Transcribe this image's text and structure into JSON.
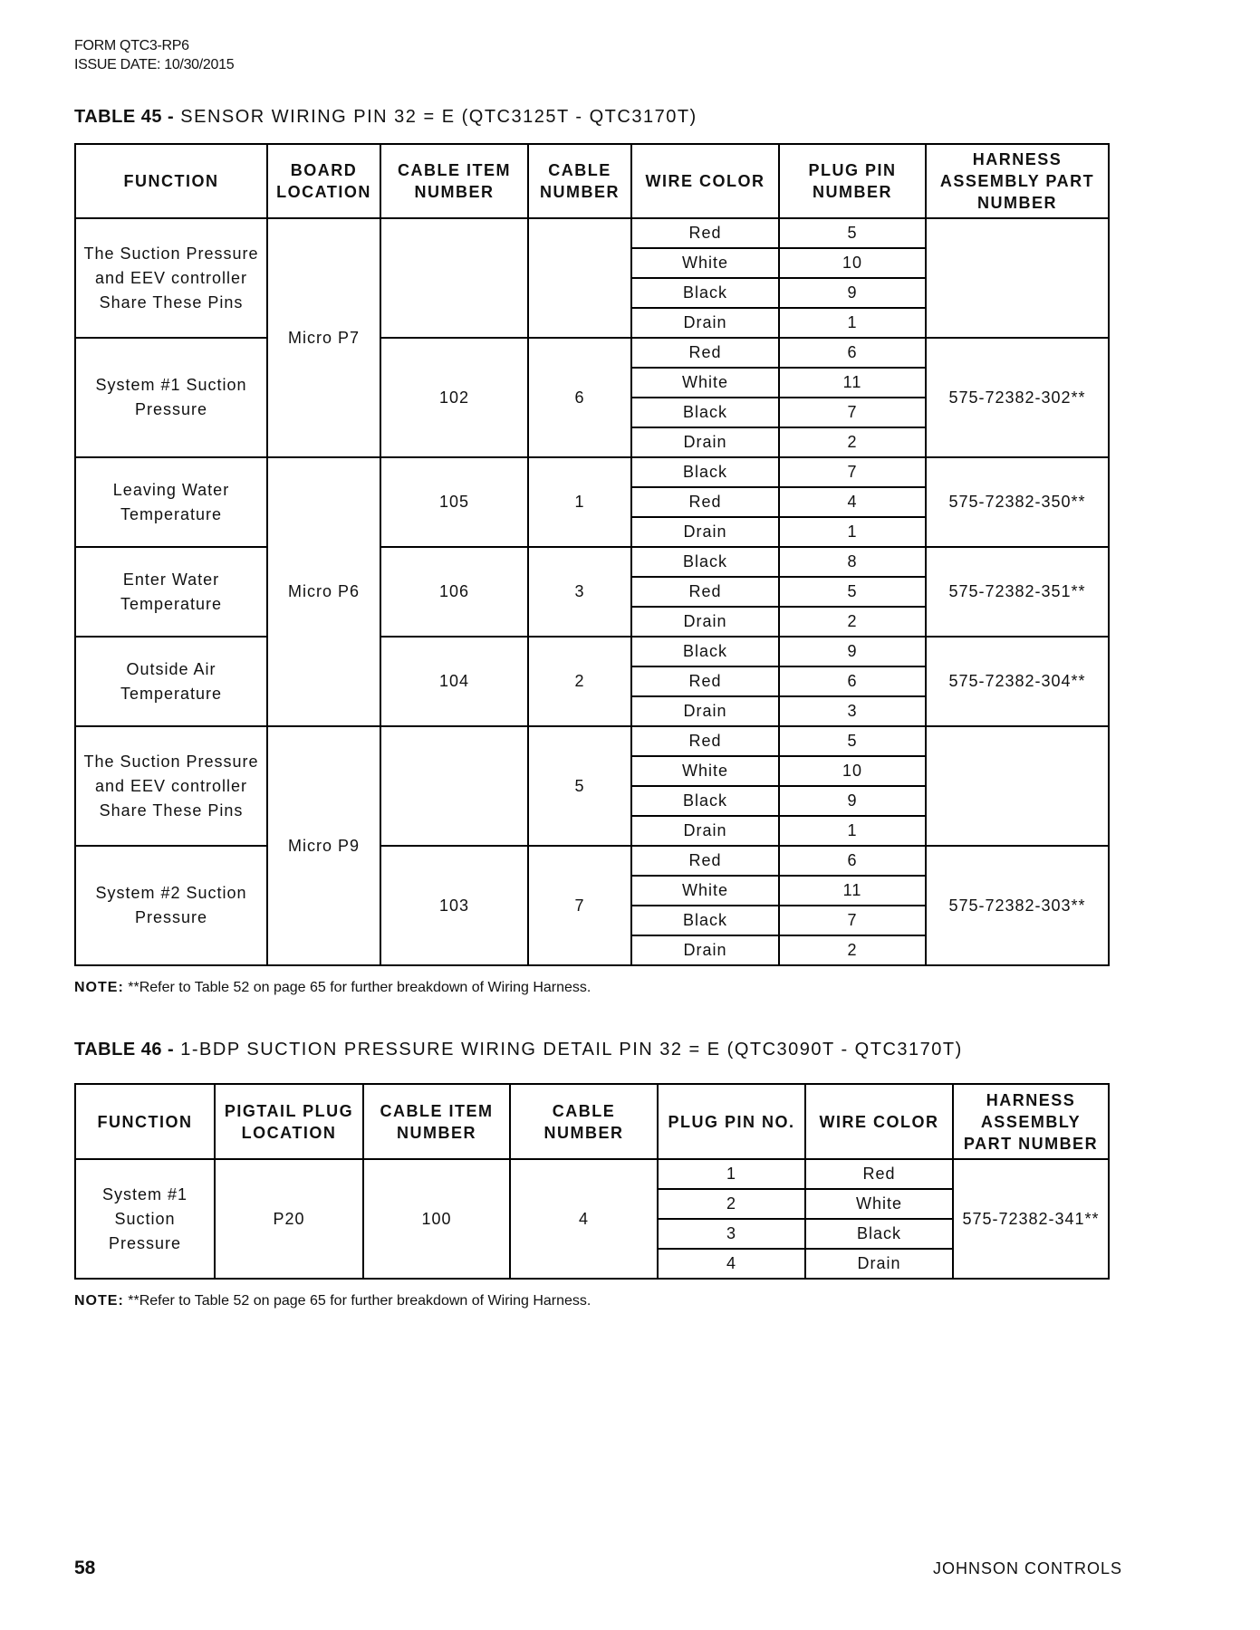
{
  "header": {
    "form": "FORM QTC3-RP6",
    "issue_date": "ISSUE DATE: 10/30/2015"
  },
  "table45": {
    "label": "TABLE 45 -",
    "title": "SENSOR WIRING PIN 32 = E (QTC3125T - QTC3170T)",
    "columns": [
      "FUNCTION",
      "BOARD LOCATION",
      "CABLE ITEM NUMBER",
      "CABLE NUMBER",
      "WIRE COLOR",
      "PLUG PIN NUMBER",
      "HARNESS ASSEMBLY PART NUMBER"
    ],
    "board_groups": [
      {
        "label": "Micro P7",
        "rows": 8
      },
      {
        "label": "Micro P6",
        "rows": 9
      },
      {
        "label": "Micro P9",
        "rows": 8
      }
    ],
    "groups": [
      {
        "function": "The Suction Pressure and EEV controller Share These Pins",
        "cable_item": "",
        "cable_number": "",
        "harness": "",
        "wires": [
          [
            "Red",
            "5"
          ],
          [
            "White",
            "10"
          ],
          [
            "Black",
            "9"
          ],
          [
            "Drain",
            "1"
          ]
        ]
      },
      {
        "function": "System #1 Suction Pressure",
        "cable_item": "102",
        "cable_number": "6",
        "harness": "575-72382-302**",
        "wires": [
          [
            "Red",
            "6"
          ],
          [
            "White",
            "11"
          ],
          [
            "Black",
            "7"
          ],
          [
            "Drain",
            "2"
          ]
        ]
      },
      {
        "function": "Leaving Water Temperature",
        "cable_item": "105",
        "cable_number": "1",
        "harness": "575-72382-350**",
        "wires": [
          [
            "Black",
            "7"
          ],
          [
            "Red",
            "4"
          ],
          [
            "Drain",
            "1"
          ]
        ]
      },
      {
        "function": "Enter Water Temperature",
        "cable_item": "106",
        "cable_number": "3",
        "harness": "575-72382-351**",
        "wires": [
          [
            "Black",
            "8"
          ],
          [
            "Red",
            "5"
          ],
          [
            "Drain",
            "2"
          ]
        ]
      },
      {
        "function": "Outside Air Temperature",
        "cable_item": "104",
        "cable_number": "2",
        "harness": "575-72382-304**",
        "wires": [
          [
            "Black",
            "9"
          ],
          [
            "Red",
            "6"
          ],
          [
            "Drain",
            "3"
          ]
        ]
      },
      {
        "function": "The Suction Pressure and EEV controller Share These Pins",
        "cable_item": "",
        "cable_number": "5",
        "harness": "",
        "wires": [
          [
            "Red",
            "5"
          ],
          [
            "White",
            "10"
          ],
          [
            "Black",
            "9"
          ],
          [
            "Drain",
            "1"
          ]
        ]
      },
      {
        "function": "System #2 Suction Pressure",
        "cable_item": "103",
        "cable_number": "7",
        "harness": "575-72382-303**",
        "wires": [
          [
            "Red",
            "6"
          ],
          [
            "White",
            "11"
          ],
          [
            "Black",
            "7"
          ],
          [
            "Drain",
            "2"
          ]
        ]
      }
    ],
    "note_label": "NOTE:",
    "note": "**Refer to Table 52 on page 65 for further breakdown of Wiring Harness."
  },
  "table46": {
    "label": "TABLE 46 -",
    "title": "1-BDP SUCTION PRESSURE WIRING DETAIL PIN 32 = E (QTC3090T - QTC3170T)",
    "columns": [
      "FUNCTION",
      "PIGTAIL PLUG LOCATION",
      "CABLE ITEM NUMBER",
      "CABLE NUMBER",
      "PLUG PIN NO.",
      "WIRE COLOR",
      "HARNESS ASSEMBLY PART NUMBER"
    ],
    "function": "System #1 Suction Pressure",
    "plug_location": "P20",
    "cable_item": "100",
    "cable_number": "4",
    "harness": "575-72382-341**",
    "pins": [
      [
        "1",
        "Red"
      ],
      [
        "2",
        "White"
      ],
      [
        "3",
        "Black"
      ],
      [
        "4",
        "Drain"
      ]
    ],
    "note_label": "NOTE:",
    "note": "**Refer to Table 52 on page 65 for further breakdown of Wiring Harness."
  },
  "footer": {
    "page": "58",
    "company": "JOHNSON CONTROLS"
  }
}
